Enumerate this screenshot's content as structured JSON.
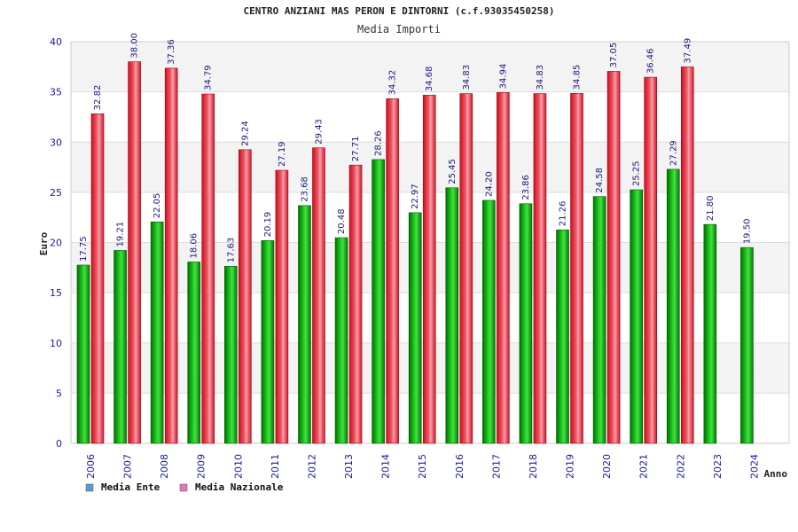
{
  "chart_data": {
    "type": "bar",
    "title": "CENTRO ANZIANI MAS PERON E DINTORNI (c.f.93035450258)",
    "subtitle": "Media Importi",
    "xlabel": "Anno",
    "ylabel": "Euro",
    "ylim": [
      0,
      40
    ],
    "yticks": [
      0,
      5,
      10,
      15,
      20,
      25,
      30,
      35,
      40
    ],
    "grid": true,
    "legend_position": "bottom-left",
    "categories": [
      "2006",
      "2007",
      "2008",
      "2009",
      "2010",
      "2011",
      "2012",
      "2013",
      "2014",
      "2015",
      "2016",
      "2017",
      "2018",
      "2019",
      "2020",
      "2021",
      "2022",
      "2023",
      "2024"
    ],
    "series": [
      {
        "name": "Media Ente",
        "color": "#00aa00",
        "legend_color": "#5b9bd5",
        "values": [
          17.75,
          19.21,
          22.05,
          18.06,
          17.63,
          20.19,
          23.68,
          20.48,
          28.26,
          22.97,
          25.45,
          24.2,
          23.86,
          21.26,
          24.58,
          25.25,
          27.29,
          21.8,
          19.5
        ],
        "labels": [
          "17.75",
          "19.21",
          "22.05",
          "18.06",
          "17.63",
          "20.19",
          "23.68",
          "20.48",
          "28.26",
          "22.97",
          "25.45",
          "24.20",
          "23.86",
          "21.26",
          "24.58",
          "25.25",
          "27.29",
          "21.80",
          "19.50"
        ]
      },
      {
        "name": "Media Nazionale",
        "color": "#e81c2c",
        "legend_color": "#e377b8",
        "values": [
          32.82,
          38.0,
          37.36,
          34.79,
          29.24,
          27.19,
          29.43,
          27.71,
          34.32,
          34.68,
          34.83,
          34.94,
          34.83,
          34.85,
          37.05,
          36.46,
          37.49,
          null,
          null
        ],
        "labels": [
          "32.82",
          "38.00",
          "37.36",
          "34.79",
          "29.24",
          "27.19",
          "29.43",
          "27.71",
          "34.32",
          "34.68",
          "34.83",
          "34.94",
          "34.83",
          "34.85",
          "37.05",
          "36.46",
          "37.49",
          "",
          ""
        ]
      }
    ]
  }
}
